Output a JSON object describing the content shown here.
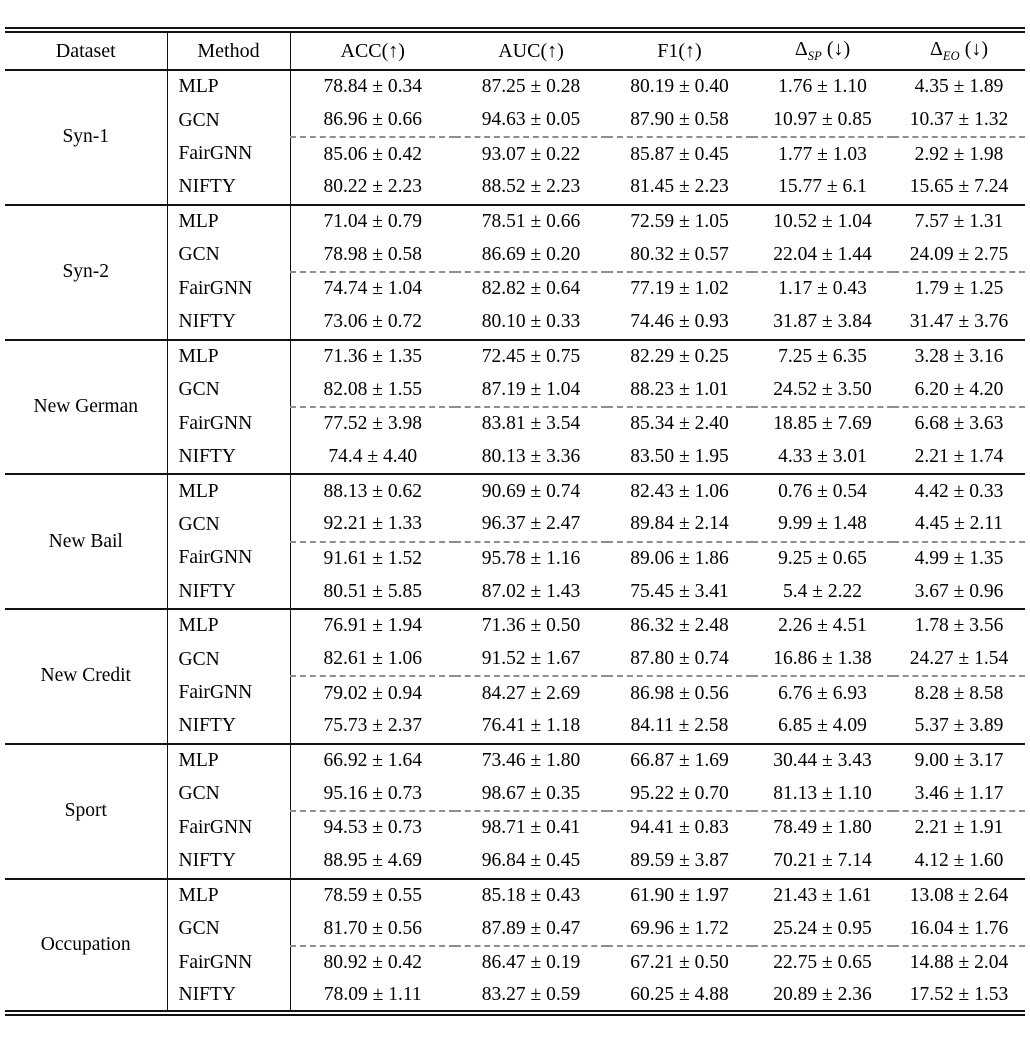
{
  "page": {
    "background": "#ffffff"
  },
  "table": {
    "colors": {
      "rule": "#121212",
      "dashed_rule": "#8f8f8f",
      "text": "#000000"
    },
    "headers": {
      "dataset": "Dataset",
      "method": "Method",
      "metrics": [
        "ACC(↑)",
        "AUC(↑)",
        "F1(↑)"
      ],
      "delta_sp": {
        "symbol": "Δ",
        "sub": "SP",
        "suffix": "(↓)"
      },
      "delta_eo": {
        "symbol": "Δ",
        "sub": "EO",
        "suffix": "(↓)"
      }
    },
    "groups": [
      {
        "dataset": "Syn-1",
        "rows": [
          {
            "method": "MLP",
            "values": [
              "78.84 ± 0.34",
              "87.25 ± 0.28",
              "80.19 ± 0.40",
              "1.76 ± 1.10",
              "4.35 ± 1.89"
            ]
          },
          {
            "method": "GCN",
            "values": [
              "86.96 ± 0.66",
              "94.63 ± 0.05",
              "87.90 ± 0.58",
              "10.97 ± 0.85",
              "10.37 ± 1.32"
            ]
          },
          {
            "method": "FairGNN",
            "values": [
              "85.06 ± 0.42",
              "93.07 ± 0.22",
              "85.87 ± 0.45",
              "1.77 ± 1.03",
              "2.92 ± 1.98"
            ]
          },
          {
            "method": "NIFTY",
            "values": [
              "80.22 ± 2.23",
              "88.52 ± 2.23",
              "81.45 ± 2.23",
              "15.77 ± 6.1",
              "15.65 ± 7.24"
            ]
          }
        ]
      },
      {
        "dataset": "Syn-2",
        "rows": [
          {
            "method": "MLP",
            "values": [
              "71.04 ± 0.79",
              "78.51 ± 0.66",
              "72.59 ± 1.05",
              "10.52 ± 1.04",
              "7.57 ± 1.31"
            ]
          },
          {
            "method": "GCN",
            "values": [
              "78.98 ± 0.58",
              "86.69 ± 0.20",
              "80.32 ± 0.57",
              "22.04 ± 1.44",
              "24.09 ± 2.75"
            ]
          },
          {
            "method": "FairGNN",
            "values": [
              "74.74 ± 1.04",
              "82.82 ± 0.64",
              "77.19 ± 1.02",
              "1.17 ± 0.43",
              "1.79 ± 1.25"
            ]
          },
          {
            "method": "NIFTY",
            "values": [
              "73.06 ± 0.72",
              "80.10 ± 0.33",
              "74.46 ± 0.93",
              "31.87 ± 3.84",
              "31.47 ± 3.76"
            ]
          }
        ]
      },
      {
        "dataset": "New German",
        "rows": [
          {
            "method": "MLP",
            "values": [
              "71.36 ± 1.35",
              "72.45 ± 0.75",
              "82.29 ± 0.25",
              "7.25 ± 6.35",
              "3.28 ± 3.16"
            ]
          },
          {
            "method": "GCN",
            "values": [
              "82.08 ± 1.55",
              "87.19 ± 1.04",
              "88.23 ± 1.01",
              "24.52 ± 3.50",
              "6.20 ± 4.20"
            ]
          },
          {
            "method": "FairGNN",
            "values": [
              "77.52 ± 3.98",
              "83.81 ± 3.54",
              "85.34 ± 2.40",
              "18.85 ± 7.69",
              "6.68 ± 3.63"
            ]
          },
          {
            "method": "NIFTY",
            "values": [
              "74.4 ± 4.40",
              "80.13 ± 3.36",
              "83.50 ± 1.95",
              "4.33 ± 3.01",
              "2.21 ± 1.74"
            ]
          }
        ]
      },
      {
        "dataset": "New Bail",
        "rows": [
          {
            "method": "MLP",
            "values": [
              "88.13 ± 0.62",
              "90.69 ± 0.74",
              "82.43 ± 1.06",
              "0.76 ± 0.54",
              "4.42 ± 0.33"
            ]
          },
          {
            "method": "GCN",
            "values": [
              "92.21 ± 1.33",
              "96.37 ± 2.47",
              "89.84 ± 2.14",
              "9.99 ± 1.48",
              "4.45 ± 2.11"
            ]
          },
          {
            "method": "FairGNN",
            "values": [
              "91.61 ± 1.52",
              "95.78 ± 1.16",
              "89.06 ± 1.86",
              "9.25 ± 0.65",
              "4.99 ± 1.35"
            ]
          },
          {
            "method": "NIFTY",
            "values": [
              "80.51 ± 5.85",
              "87.02 ± 1.43",
              "75.45 ± 3.41",
              "5.4 ± 2.22",
              "3.67 ± 0.96"
            ]
          }
        ]
      },
      {
        "dataset": "New Credit",
        "rows": [
          {
            "method": "MLP",
            "values": [
              "76.91 ± 1.94",
              "71.36 ± 0.50",
              "86.32 ± 2.48",
              "2.26 ± 4.51",
              "1.78 ± 3.56"
            ]
          },
          {
            "method": "GCN",
            "values": [
              "82.61 ± 1.06",
              "91.52 ± 1.67",
              "87.80 ± 0.74",
              "16.86 ± 1.38",
              "24.27 ± 1.54"
            ]
          },
          {
            "method": "FairGNN",
            "values": [
              "79.02 ± 0.94",
              "84.27 ± 2.69",
              "86.98 ± 0.56",
              "6.76 ± 6.93",
              "8.28 ± 8.58"
            ]
          },
          {
            "method": "NIFTY",
            "values": [
              "75.73 ± 2.37",
              "76.41 ± 1.18",
              "84.11 ± 2.58",
              "6.85 ± 4.09",
              "5.37 ± 3.89"
            ]
          }
        ]
      },
      {
        "dataset": "Sport",
        "rows": [
          {
            "method": "MLP",
            "values": [
              "66.92 ± 1.64",
              "73.46 ± 1.80",
              "66.87 ± 1.69",
              "30.44 ± 3.43",
              "9.00 ± 3.17"
            ]
          },
          {
            "method": "GCN",
            "values": [
              "95.16 ± 0.73",
              "98.67 ± 0.35",
              "95.22 ± 0.70",
              "81.13 ± 1.10",
              "3.46 ± 1.17"
            ]
          },
          {
            "method": "FairGNN",
            "values": [
              "94.53 ± 0.73",
              "98.71 ± 0.41",
              "94.41 ± 0.83",
              "78.49 ± 1.80",
              "2.21 ± 1.91"
            ]
          },
          {
            "method": "NIFTY",
            "values": [
              "88.95 ± 4.69",
              "96.84 ± 0.45",
              "89.59 ± 3.87",
              "70.21 ± 7.14",
              "4.12 ± 1.60"
            ]
          }
        ]
      },
      {
        "dataset": "Occupation",
        "rows": [
          {
            "method": "MLP",
            "values": [
              "78.59 ± 0.55",
              "85.18 ± 0.43",
              "61.90 ± 1.97",
              "21.43 ± 1.61",
              "13.08 ± 2.64"
            ]
          },
          {
            "method": "GCN",
            "values": [
              "81.70 ± 0.56",
              "87.89 ± 0.47",
              "69.96 ± 1.72",
              "25.24 ± 0.95",
              "16.04 ± 1.76"
            ]
          },
          {
            "method": "FairGNN",
            "values": [
              "80.92 ± 0.42",
              "86.47 ± 0.19",
              "67.21 ± 0.50",
              "22.75 ± 0.65",
              "14.88 ± 2.04"
            ]
          },
          {
            "method": "NIFTY",
            "values": [
              "78.09 ± 1.11",
              "83.27 ± 0.59",
              "60.25 ± 4.88",
              "20.89 ± 2.36",
              "17.52 ± 1.53"
            ]
          }
        ]
      }
    ]
  }
}
